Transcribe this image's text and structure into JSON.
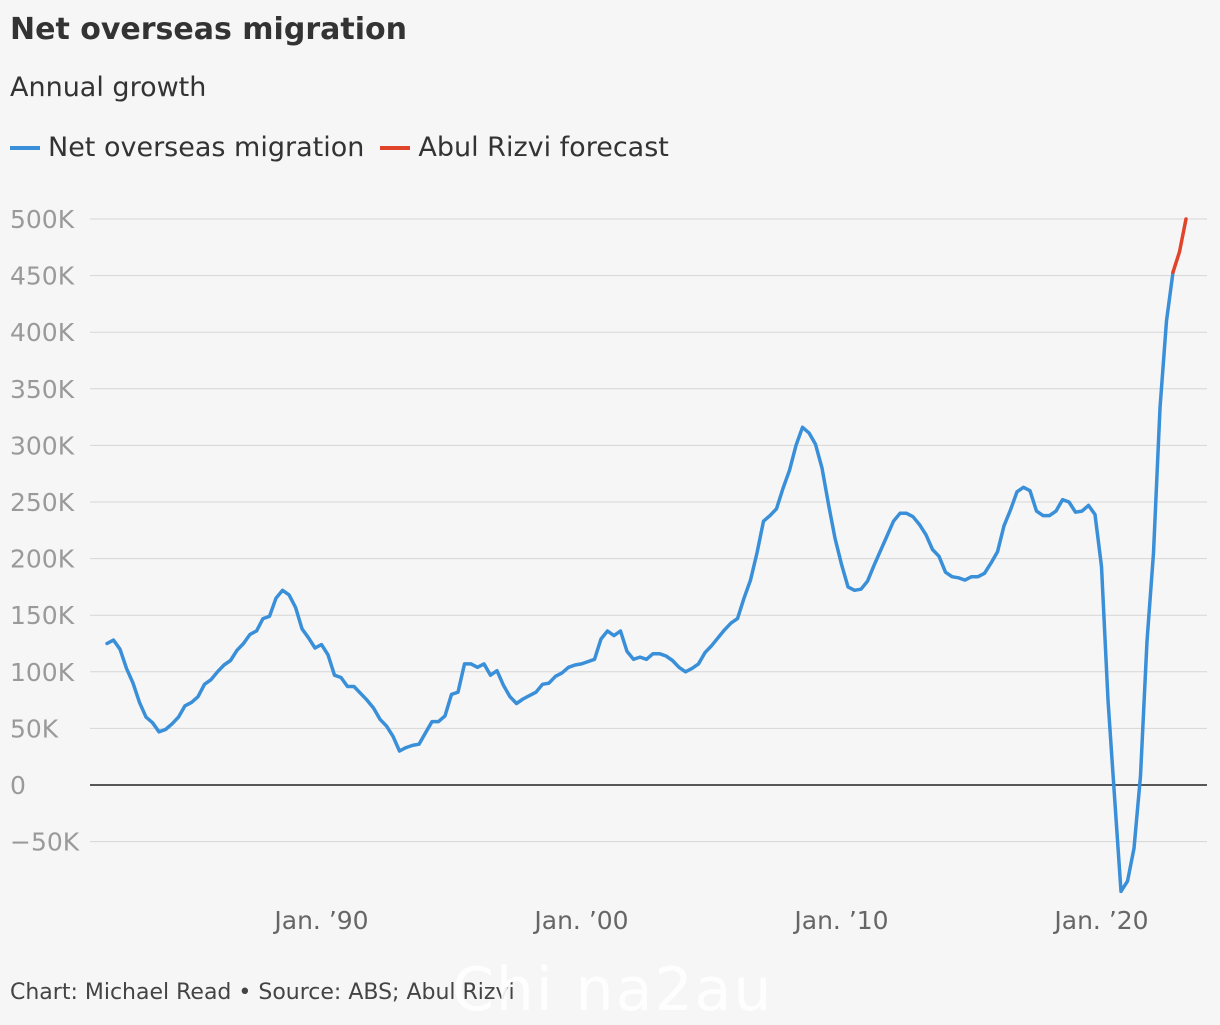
{
  "header": {
    "title": "Net overseas migration",
    "subtitle": "Annual growth"
  },
  "footer": {
    "source": "Chart: Michael Read • Source: ABS; Abul Rizvi",
    "watermark": "Chi na2au"
  },
  "chart_data": {
    "type": "line",
    "title": "Net overseas migration",
    "subtitle": "Annual growth",
    "ylim": [
      -95000,
      500000
    ],
    "xlim": [
      1981.0,
      2024.5
    ],
    "yticks": [
      500000,
      450000,
      400000,
      350000,
      300000,
      250000,
      200000,
      150000,
      100000,
      50000,
      0,
      -50000
    ],
    "ytick_labels": [
      "500K",
      "450K",
      "400K",
      "350K",
      "300K",
      "250K",
      "200K",
      "150K",
      "100K",
      "50K",
      "0",
      "−50K"
    ],
    "xticks": [
      1990,
      2000,
      2010,
      2020
    ],
    "xtick_labels": [
      "Jan. ’90",
      "Jan. ’00",
      "Jan. ’10",
      "Jan. ’20"
    ],
    "grid": true,
    "legend_position": "top-left",
    "series": [
      {
        "name": "Net overseas migration",
        "color": "#3a8fd9",
        "points": [
          [
            1981.75,
            125000
          ],
          [
            1982.0,
            128000
          ],
          [
            1982.25,
            120000
          ],
          [
            1982.5,
            103000
          ],
          [
            1982.75,
            90000
          ],
          [
            1983.0,
            73000
          ],
          [
            1983.25,
            60000
          ],
          [
            1983.5,
            55000
          ],
          [
            1983.75,
            47000
          ],
          [
            1984.0,
            49000
          ],
          [
            1984.25,
            54000
          ],
          [
            1984.5,
            60000
          ],
          [
            1984.75,
            70000
          ],
          [
            1985.0,
            73000
          ],
          [
            1985.25,
            78000
          ],
          [
            1985.5,
            89000
          ],
          [
            1985.75,
            93000
          ],
          [
            1986.0,
            100000
          ],
          [
            1986.25,
            106000
          ],
          [
            1986.5,
            110000
          ],
          [
            1986.75,
            119000
          ],
          [
            1987.0,
            125000
          ],
          [
            1987.25,
            133000
          ],
          [
            1987.5,
            136000
          ],
          [
            1987.75,
            147000
          ],
          [
            1988.0,
            149000
          ],
          [
            1988.25,
            165000
          ],
          [
            1988.5,
            172000
          ],
          [
            1988.75,
            168000
          ],
          [
            1989.0,
            157000
          ],
          [
            1989.25,
            138000
          ],
          [
            1989.5,
            130000
          ],
          [
            1989.75,
            121000
          ],
          [
            1990.0,
            124000
          ],
          [
            1990.25,
            115000
          ],
          [
            1990.5,
            97000
          ],
          [
            1990.75,
            95000
          ],
          [
            1991.0,
            87000
          ],
          [
            1991.25,
            87000
          ],
          [
            1991.5,
            81000
          ],
          [
            1991.75,
            75000
          ],
          [
            1992.0,
            68000
          ],
          [
            1992.25,
            58000
          ],
          [
            1992.5,
            52000
          ],
          [
            1992.75,
            43000
          ],
          [
            1993.0,
            30000
          ],
          [
            1993.25,
            33000
          ],
          [
            1993.5,
            35000
          ],
          [
            1993.75,
            36000
          ],
          [
            1994.0,
            46000
          ],
          [
            1994.25,
            56000
          ],
          [
            1994.5,
            56000
          ],
          [
            1994.75,
            61000
          ],
          [
            1995.0,
            80000
          ],
          [
            1995.25,
            82000
          ],
          [
            1995.5,
            107000
          ],
          [
            1995.75,
            107000
          ],
          [
            1996.0,
            104000
          ],
          [
            1996.25,
            107000
          ],
          [
            1996.5,
            97000
          ],
          [
            1996.75,
            101000
          ],
          [
            1997.0,
            88000
          ],
          [
            1997.25,
            78000
          ],
          [
            1997.5,
            72000
          ],
          [
            1997.75,
            76000
          ],
          [
            1998.0,
            79000
          ],
          [
            1998.25,
            82000
          ],
          [
            1998.5,
            89000
          ],
          [
            1998.75,
            90000
          ],
          [
            1999.0,
            96000
          ],
          [
            1999.25,
            99000
          ],
          [
            1999.5,
            104000
          ],
          [
            1999.75,
            106000
          ],
          [
            2000.0,
            107000
          ],
          [
            2000.25,
            109000
          ],
          [
            2000.5,
            111000
          ],
          [
            2000.75,
            129000
          ],
          [
            2001.0,
            136000
          ],
          [
            2001.25,
            132000
          ],
          [
            2001.5,
            136000
          ],
          [
            2001.75,
            118000
          ],
          [
            2002.0,
            111000
          ],
          [
            2002.25,
            113000
          ],
          [
            2002.5,
            111000
          ],
          [
            2002.75,
            116000
          ],
          [
            2003.0,
            116000
          ],
          [
            2003.25,
            114000
          ],
          [
            2003.5,
            110000
          ],
          [
            2003.75,
            104000
          ],
          [
            2004.0,
            100000
          ],
          [
            2004.25,
            103000
          ],
          [
            2004.5,
            107000
          ],
          [
            2004.75,
            117000
          ],
          [
            2005.0,
            123000
          ],
          [
            2005.25,
            130000
          ],
          [
            2005.5,
            137000
          ],
          [
            2005.75,
            143000
          ],
          [
            2006.0,
            147000
          ],
          [
            2006.25,
            165000
          ],
          [
            2006.5,
            181000
          ],
          [
            2006.75,
            205000
          ],
          [
            2007.0,
            233000
          ],
          [
            2007.25,
            238000
          ],
          [
            2007.5,
            244000
          ],
          [
            2007.75,
            262000
          ],
          [
            2008.0,
            278000
          ],
          [
            2008.25,
            300000
          ],
          [
            2008.5,
            316000
          ],
          [
            2008.75,
            311000
          ],
          [
            2009.0,
            301000
          ],
          [
            2009.25,
            280000
          ],
          [
            2009.5,
            248000
          ],
          [
            2009.75,
            218000
          ],
          [
            2010.0,
            195000
          ],
          [
            2010.25,
            175000
          ],
          [
            2010.5,
            172000
          ],
          [
            2010.75,
            173000
          ],
          [
            2011.0,
            180000
          ],
          [
            2011.25,
            194000
          ],
          [
            2011.5,
            207000
          ],
          [
            2011.75,
            220000
          ],
          [
            2012.0,
            233000
          ],
          [
            2012.25,
            240000
          ],
          [
            2012.5,
            240000
          ],
          [
            2012.75,
            237000
          ],
          [
            2013.0,
            230000
          ],
          [
            2013.25,
            221000
          ],
          [
            2013.5,
            208000
          ],
          [
            2013.75,
            202000
          ],
          [
            2014.0,
            188000
          ],
          [
            2014.25,
            184000
          ],
          [
            2014.5,
            183000
          ],
          [
            2014.75,
            181000
          ],
          [
            2015.0,
            184000
          ],
          [
            2015.25,
            184000
          ],
          [
            2015.5,
            187000
          ],
          [
            2015.75,
            196000
          ],
          [
            2016.0,
            206000
          ],
          [
            2016.25,
            229000
          ],
          [
            2016.5,
            243000
          ],
          [
            2016.75,
            259000
          ],
          [
            2017.0,
            263000
          ],
          [
            2017.25,
            260000
          ],
          [
            2017.5,
            242000
          ],
          [
            2017.75,
            238000
          ],
          [
            2018.0,
            238000
          ],
          [
            2018.25,
            242000
          ],
          [
            2018.5,
            252000
          ],
          [
            2018.75,
            250000
          ],
          [
            2019.0,
            241000
          ],
          [
            2019.25,
            242000
          ],
          [
            2019.5,
            247000
          ],
          [
            2019.75,
            239000
          ],
          [
            2020.0,
            193000
          ],
          [
            2020.25,
            75000
          ],
          [
            2020.5,
            -10000
          ],
          [
            2020.75,
            -94000
          ],
          [
            2021.0,
            -85000
          ],
          [
            2021.25,
            -56000
          ],
          [
            2021.5,
            8000
          ],
          [
            2021.75,
            127000
          ],
          [
            2022.0,
            205000
          ],
          [
            2022.25,
            333000
          ],
          [
            2022.5,
            410000
          ],
          [
            2022.75,
            453000
          ]
        ]
      },
      {
        "name": "Abul Rizvi forecast",
        "color": "#e0452b",
        "points": [
          [
            2022.75,
            453000
          ],
          [
            2023.0,
            471000
          ],
          [
            2023.25,
            500000
          ]
        ]
      }
    ]
  }
}
